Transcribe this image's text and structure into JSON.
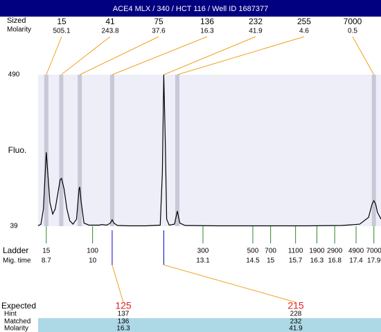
{
  "chart_data": {
    "type": "line",
    "title": "ACE4 MLX / 340 / HCT 116 / Well ID 1687377",
    "y_label": "Fluo.",
    "ylim": [
      39,
      490
    ],
    "yticks": [
      39,
      490
    ],
    "xlim": [
      8.47,
      18.1
    ],
    "color": "#000000",
    "x": [
      8.47,
      8.55,
      8.62,
      8.67,
      8.7,
      8.74,
      8.8,
      8.88,
      8.95,
      9.03,
      9.09,
      9.13,
      9.2,
      9.28,
      9.36,
      9.45,
      9.55,
      9.62,
      9.64,
      9.68,
      9.76,
      9.9,
      10.2,
      10.25,
      10.4,
      10.5,
      10.55,
      10.6,
      10.7,
      11.0,
      11.5,
      11.9,
      11.96,
      12.0,
      12.04,
      12.08,
      12.15,
      12.3,
      12.38,
      12.45,
      12.6,
      13.5,
      15.0,
      16.0,
      17.0,
      17.5,
      17.75,
      17.85,
      17.9,
      17.95,
      18.0,
      18.1
    ],
    "values": [
      40,
      45,
      90,
      200,
      259,
      200,
      110,
      75,
      90,
      140,
      178,
      181,
      150,
      90,
      55,
      45,
      60,
      150,
      156,
      110,
      48,
      42,
      42,
      44,
      42,
      48,
      58,
      48,
      41,
      40,
      40,
      42,
      200,
      490,
      300,
      60,
      42,
      45,
      84,
      48,
      41,
      40,
      40,
      40,
      41,
      45,
      65,
      105,
      115,
      105,
      80,
      60
    ],
    "peaks": {
      "size_label": "Sized",
      "molarity_label": "Molarity",
      "sizes": [
        15,
        41,
        75,
        136,
        232,
        255,
        7000
      ],
      "molarity": [
        505.1,
        243.8,
        37.6,
        16.3,
        41.9,
        4.6,
        0.5
      ],
      "times": [
        8.7,
        9.12,
        9.64,
        10.55,
        12.0,
        12.38,
        17.9
      ]
    },
    "ladder": {
      "label": "Ladder",
      "time_label": "Mig. time",
      "sizes": [
        15,
        100,
        300,
        500,
        700,
        1100,
        1900,
        2900,
        4900,
        7000
      ],
      "times": [
        8.7,
        10,
        13.1,
        14.5,
        15,
        15.7,
        16.3,
        16.8,
        17.4,
        17.9
      ]
    },
    "expected": {
      "labels": [
        "Expected",
        "Hint",
        "Matched",
        "Molarity"
      ],
      "expected": [
        125,
        215
      ],
      "hint": [
        137,
        228
      ],
      "matched": [
        136,
        232
      ],
      "molarity": [
        16.3,
        41.9
      ]
    }
  }
}
